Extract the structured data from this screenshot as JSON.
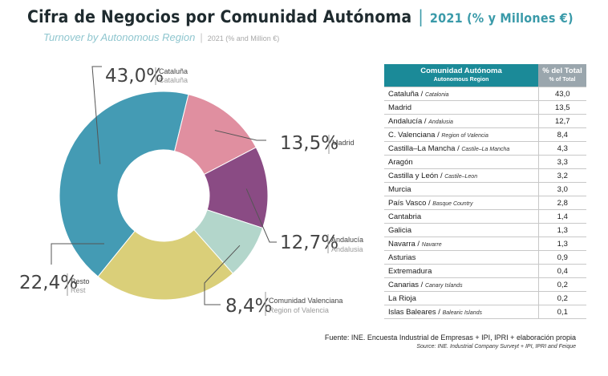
{
  "header": {
    "title": "Cifra de Negocios por Comunidad Autónoma",
    "separator": "|",
    "unit": "2021 (% y Millones €)",
    "subtitle": "Turnover by Autonomous Region",
    "subtitle_separator": "|",
    "subtitle_unit": "2021 (% and Million €)"
  },
  "chart_data": {
    "type": "pie",
    "donut": true,
    "slices": [
      {
        "label": "Cataluña",
        "label_en": "Cataluña",
        "value": 43.0,
        "display": "43,0%",
        "color": "#449bb4"
      },
      {
        "label": "Madrid",
        "label_en": "",
        "value": 13.5,
        "display": "13,5%",
        "color": "#e08fa0"
      },
      {
        "label": "Andalucía",
        "label_en": "Andalusia",
        "value": 12.7,
        "display": "12,7%",
        "color": "#8a4b84"
      },
      {
        "label": "Comunidad Valenciana",
        "label_en": "Region of Valencia",
        "value": 8.4,
        "display": "8,4%",
        "color": "#b3d6cb"
      },
      {
        "label": "Resto",
        "label_en": "Rest",
        "value": 22.4,
        "display": "22,4%",
        "color": "#dacf79"
      }
    ]
  },
  "table": {
    "col1": "Comunidad Autónoma",
    "col1_sub": "Autonomous Region",
    "col2": "% del Total",
    "col2_sub": "% of Total",
    "rows": [
      {
        "name": "Cataluña",
        "en": "Catalonia",
        "value": "43,0"
      },
      {
        "name": "Madrid",
        "en": "",
        "value": "13,5"
      },
      {
        "name": "Andalucía",
        "en": "Andalusia",
        "value": "12,7"
      },
      {
        "name": "C. Valenciana",
        "en": "Region of Valencia",
        "value": "8,4"
      },
      {
        "name": "Castilla–La Mancha",
        "en": "Castile–La Mancha",
        "value": "4,3"
      },
      {
        "name": "Aragón",
        "en": "",
        "value": "3,3"
      },
      {
        "name": "Castilla y León",
        "en": "Castile–Leon",
        "value": "3,2"
      },
      {
        "name": "Murcia",
        "en": "",
        "value": "3,0"
      },
      {
        "name": "País Vasco",
        "en": "Basque Country",
        "value": "2,8"
      },
      {
        "name": "Cantabria",
        "en": "",
        "value": "1,4"
      },
      {
        "name": "Galicia",
        "en": "",
        "value": "1,3"
      },
      {
        "name": "Navarra",
        "en": "Navarre",
        "value": "1,3"
      },
      {
        "name": "Asturias",
        "en": "",
        "value": "0,9"
      },
      {
        "name": "Extremadura",
        "en": "",
        "value": "0,4"
      },
      {
        "name": "Canarias",
        "en": "Canary Islands",
        "value": "0,2"
      },
      {
        "name": "La Rioja",
        "en": "",
        "value": "0,2"
      },
      {
        "name": "Islas Baleares",
        "en": "Balearic Islands",
        "value": "0,1"
      }
    ]
  },
  "source": {
    "es": "Fuente: INE. Encuesta Industrial de Empresas + IPI, IPRI + elaboración propia",
    "en": "Source: INE. Industrial Company Surveyt + IPI, IPRI and Feique"
  }
}
